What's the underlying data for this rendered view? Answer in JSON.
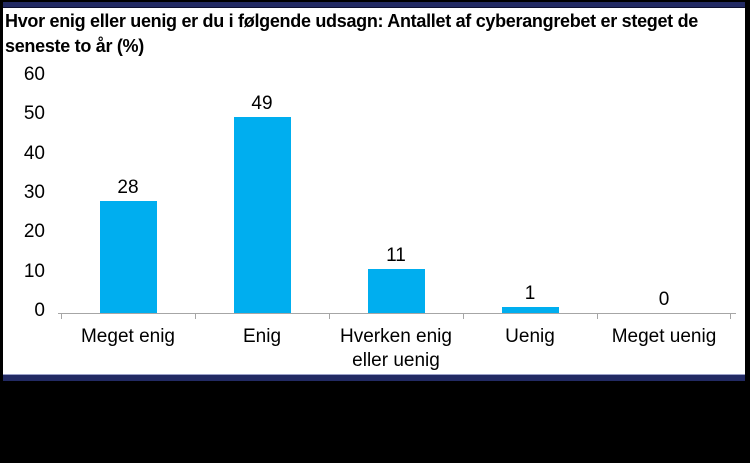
{
  "page": {
    "background_color": "#000000",
    "accent_stripe_color": "#222a63",
    "panel_background": "#ffffff"
  },
  "chart_data": {
    "type": "bar",
    "title": "Hvor enig eller uenig er du i følgende udsagn: Antallet af cyberangrebet er steget de seneste to år (%)",
    "categories": [
      "Meget enig",
      "Enig",
      "Hverken enig eller uenig",
      "Uenig",
      "Meget uenig"
    ],
    "values": [
      28,
      49,
      11,
      1,
      0
    ],
    "value_labels": [
      "28",
      "49",
      "11",
      "1",
      "0"
    ],
    "yticks": [
      "60",
      "50",
      "40",
      "30",
      "20",
      "10",
      "0"
    ],
    "ylim": [
      0,
      60
    ],
    "xlabel": "",
    "ylabel": "",
    "bar_color": "#00AEEF",
    "axis_color": "#a6a6a6",
    "text_color": "#000000",
    "grid": false,
    "legend": false
  }
}
